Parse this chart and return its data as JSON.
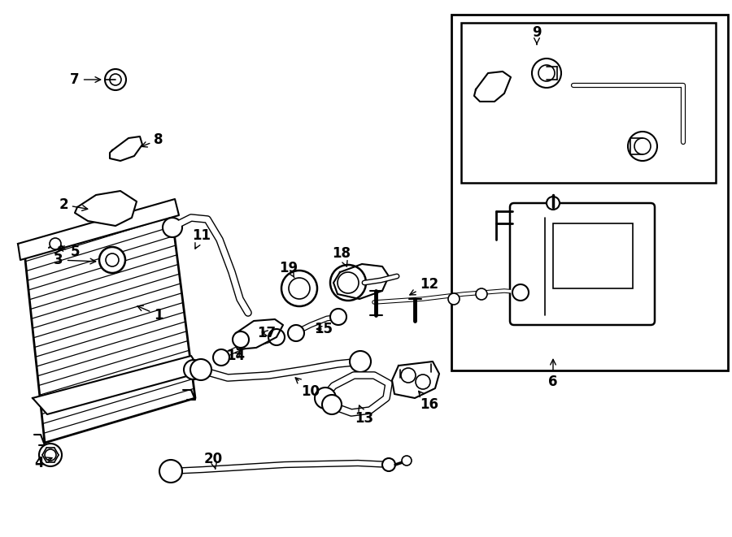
{
  "background_color": "#ffffff",
  "line_color": "#000000",
  "fig_width": 9.0,
  "fig_height": 6.61,
  "dpi": 100,
  "lw_hose": 5.5,
  "lw_hose_inner": 3.5,
  "lw_thin": 1.2,
  "lw_med": 1.8,
  "font_size_labels": 12
}
